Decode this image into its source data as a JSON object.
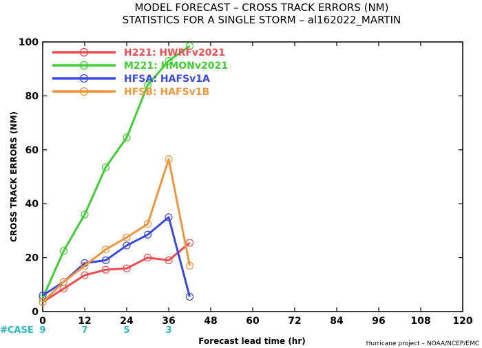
{
  "chart_data": {
    "type": "line",
    "title": "MODEL FORECAST – CROSS TRACK ERRORS (NM)",
    "subtitle": "STATISTICS FOR A SINGLE STORM – al162022_MARTIN",
    "xlabel": "Forecast lead time (hr)",
    "ylabel": "CROSS TRACK ERRORS (NM)",
    "xlim": [
      0,
      120
    ],
    "ylim": [
      0,
      100
    ],
    "x_ticks": [
      0,
      12,
      24,
      36,
      48,
      60,
      72,
      84,
      96,
      108,
      120
    ],
    "y_ticks": [
      0,
      20,
      40,
      60,
      80,
      100
    ],
    "grid": false,
    "legend_position": "top-left",
    "series": [
      {
        "name": "H221: HWRFv2021",
        "color": "#f04c50",
        "x": [
          0,
          6,
          12,
          18,
          24,
          30,
          36,
          42
        ],
        "values": [
          3.5,
          8.5,
          13.5,
          15.5,
          16,
          20,
          19,
          25.5
        ]
      },
      {
        "name": "M221: HMONv2021",
        "color": "#3ecf30",
        "x": [
          0,
          6,
          12,
          18,
          24,
          30,
          36,
          42
        ],
        "values": [
          5,
          22.5,
          36,
          53.5,
          64.5,
          84,
          93,
          98.5
        ]
      },
      {
        "name": "HFSA: HAFSv1A",
        "color": "#3a48e6",
        "x": [
          0,
          6,
          12,
          18,
          24,
          30,
          36,
          42
        ],
        "values": [
          6,
          11,
          18,
          19,
          24.5,
          28.5,
          35,
          5.5
        ]
      },
      {
        "name": "HFSB: HAFSv1B",
        "color": "#f0953c",
        "x": [
          0,
          6,
          12,
          18,
          24,
          30,
          36,
          42
        ],
        "values": [
          3.5,
          11,
          17,
          23,
          27.5,
          32.5,
          56.5,
          17
        ]
      }
    ],
    "case_label": "#CASE",
    "cases": [
      {
        "x": 0,
        "count": "9"
      },
      {
        "x": 12,
        "count": "7"
      },
      {
        "x": 24,
        "count": "5"
      },
      {
        "x": 36,
        "count": "3"
      }
    ],
    "credit": "Hurricane project – NOAA/NCEP/EMC"
  }
}
